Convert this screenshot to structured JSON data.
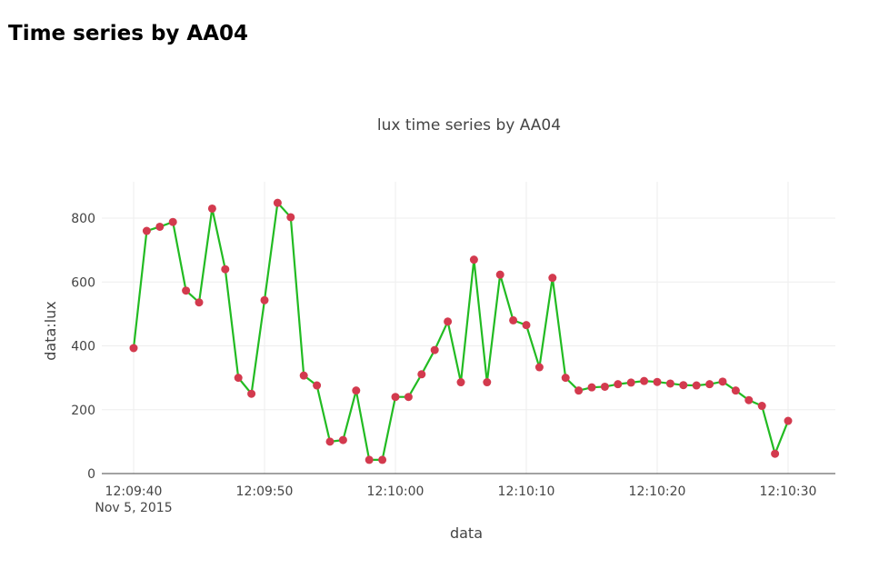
{
  "page": {
    "heading": "Time series by AA04"
  },
  "chart_data": {
    "type": "line",
    "title": "lux time series by AA04",
    "xlabel": "data",
    "ylabel": "data:lux",
    "x_date_label": "Nov 5, 2015",
    "x_tick_values": [
      "12:09:40",
      "12:09:50",
      "12:10:00",
      "12:10:10",
      "12:10:20",
      "12:10:30"
    ],
    "y_tick_values": [
      0,
      200,
      400,
      600,
      800
    ],
    "ylim": [
      0,
      900
    ],
    "xlim": [
      "12:09:40",
      "12:10:30"
    ],
    "grid": true,
    "colors": {
      "line": "#22bb22",
      "marker": "#d33a4e",
      "grid": "#eeeeee",
      "axis": "#444444"
    },
    "series": [
      {
        "x": [
          "12:09:40",
          "12:09:41",
          "12:09:42",
          "12:09:43",
          "12:09:44",
          "12:09:45",
          "12:09:46",
          "12:09:47",
          "12:09:48",
          "12:09:49",
          "12:09:50",
          "12:09:51",
          "12:09:52",
          "12:09:53",
          "12:09:54",
          "12:09:55",
          "12:09:56",
          "12:09:57",
          "12:09:58",
          "12:09:59",
          "12:10:00",
          "12:10:01",
          "12:10:02",
          "12:10:03",
          "12:10:04",
          "12:10:05",
          "12:10:06",
          "12:10:07",
          "12:10:08",
          "12:10:09",
          "12:10:10",
          "12:10:11",
          "12:10:12",
          "12:10:13",
          "12:10:14",
          "12:10:15",
          "12:10:16",
          "12:10:17",
          "12:10:18",
          "12:10:19",
          "12:10:20",
          "12:10:21",
          "12:10:22",
          "12:10:23",
          "12:10:24",
          "12:10:25",
          "12:10:26",
          "12:10:27",
          "12:10:28",
          "12:10:29",
          "12:10:30"
        ],
        "values": [
          393,
          760,
          773,
          788,
          573,
          536,
          830,
          640,
          300,
          250,
          543,
          848,
          803,
          307,
          276,
          100,
          105,
          260,
          43,
          43,
          240,
          240,
          311,
          387,
          476,
          286,
          670,
          286,
          623,
          480,
          465,
          333,
          613,
          300,
          260,
          270,
          272,
          280,
          285,
          290,
          287,
          282,
          277,
          276,
          280,
          288,
          260,
          230,
          212,
          62,
          165
        ]
      }
    ]
  }
}
